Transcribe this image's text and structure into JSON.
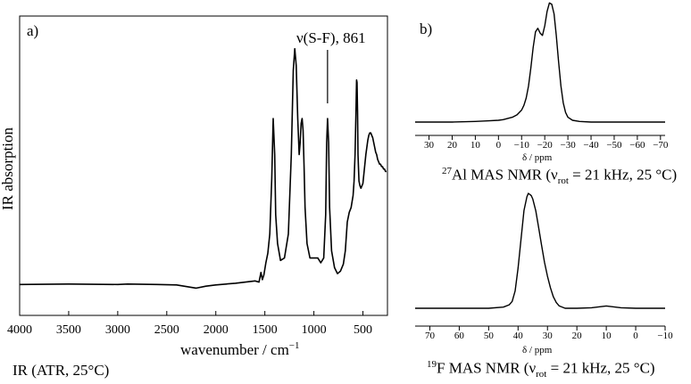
{
  "panels": {
    "a": "a)",
    "b": "b)"
  },
  "captions": {
    "ir": "IR (ATR, 25°C)",
    "al_nucleus": "27",
    "al_text": "Al MAS NMR (ν",
    "al_sub": "rot",
    "al_tail": " = 21 kHz, 25 °C)",
    "f_nucleus": "19",
    "f_text": "F MAS NMR (ν",
    "f_sub": "rot",
    "f_tail": " = 21 kHz, 25 °C)"
  },
  "chart_data": [
    {
      "type": "line",
      "panel": "a)",
      "xlabel": "wavenumber / cm",
      "xlabel_sup": "−1",
      "ylabel": "IR absorption",
      "xlim": [
        4000,
        250
      ],
      "ylim": [
        0,
        1
      ],
      "x_reversed": true,
      "xticks": [
        4000,
        3500,
        3000,
        2500,
        2000,
        1500,
        1000,
        500
      ],
      "y_ticklabels": false,
      "annotation": {
        "text": "ν(S-F), 861",
        "x": 861
      },
      "series": [
        {
          "x": [
            4000,
            3500,
            3000,
            2900,
            2600,
            2400,
            2200,
            2100,
            2000,
            1800,
            1600,
            1560,
            1540,
            1525,
            1510,
            1490,
            1470,
            1450,
            1430,
            1415,
            1400,
            1390,
            1370,
            1340,
            1300,
            1260,
            1230,
            1210,
            1195,
            1180,
            1165,
            1150,
            1140,
            1130,
            1120,
            1110,
            1100,
            1090,
            1070,
            1040,
            1000,
            960,
            930,
            900,
            880,
            870,
            861,
            850,
            840,
            820,
            790,
            760,
            730,
            700,
            680,
            660,
            640,
            620,
            600,
            590,
            580,
            570,
            565,
            560,
            555,
            550,
            540,
            530,
            520,
            510,
            500,
            490,
            480,
            470,
            460,
            450,
            440,
            430,
            420,
            410,
            400,
            390,
            380,
            370,
            360,
            350,
            340,
            330,
            320,
            310,
            300,
            290,
            280,
            270,
            260
          ],
          "y": [
            0.01,
            0.012,
            0.01,
            0.012,
            0.01,
            0.008,
            -0.005,
            0.003,
            0.008,
            0.015,
            0.025,
            0.02,
            0.06,
            0.03,
            0.05,
            0.1,
            0.14,
            0.22,
            0.45,
            0.7,
            0.55,
            0.3,
            0.18,
            0.11,
            0.12,
            0.22,
            0.55,
            0.9,
            0.99,
            0.92,
            0.7,
            0.55,
            0.6,
            0.68,
            0.7,
            0.65,
            0.5,
            0.33,
            0.18,
            0.12,
            0.12,
            0.12,
            0.1,
            0.12,
            0.3,
            0.6,
            0.7,
            0.6,
            0.33,
            0.15,
            0.08,
            0.055,
            0.065,
            0.095,
            0.15,
            0.27,
            0.31,
            0.33,
            0.38,
            0.44,
            0.55,
            0.74,
            0.86,
            0.85,
            0.73,
            0.55,
            0.44,
            0.42,
            0.41,
            0.42,
            0.43,
            0.47,
            0.51,
            0.55,
            0.58,
            0.61,
            0.63,
            0.64,
            0.64,
            0.63,
            0.62,
            0.6,
            0.58,
            0.56,
            0.55,
            0.53,
            0.52,
            0.51,
            0.51,
            0.5,
            0.5,
            0.49,
            0.49,
            0.48,
            0.48
          ]
        }
      ]
    },
    {
      "type": "line",
      "panel": "b)",
      "nucleus": "27Al",
      "xlabel": "δ / ppm",
      "xlim": [
        36,
        -72
      ],
      "ylim": [
        0,
        1
      ],
      "x_reversed": true,
      "xticks": [
        30,
        20,
        10,
        0,
        -10,
        -20,
        -30,
        -40,
        -50,
        -60,
        -70
      ],
      "series": [
        {
          "x": [
            36,
            20,
            10,
            5,
            0,
            -2,
            -4,
            -6,
            -8,
            -10,
            -11,
            -12,
            -13,
            -14,
            -15,
            -16,
            -17,
            -18,
            -19,
            -20,
            -21,
            -22,
            -23,
            -24,
            -25,
            -26,
            -27,
            -28,
            -29,
            -30,
            -32,
            -35,
            -40,
            -50,
            -72
          ],
          "y": [
            0.0,
            0.0,
            0.005,
            0.01,
            0.015,
            0.02,
            0.03,
            0.04,
            0.06,
            0.1,
            0.14,
            0.2,
            0.3,
            0.45,
            0.62,
            0.75,
            0.78,
            0.74,
            0.72,
            0.8,
            0.92,
            0.99,
            0.98,
            0.9,
            0.72,
            0.5,
            0.3,
            0.16,
            0.08,
            0.04,
            0.015,
            0.005,
            0.0,
            0.0,
            0.0
          ]
        }
      ]
    },
    {
      "type": "line",
      "panel": "b)",
      "nucleus": "19F",
      "xlabel": "δ / ppm",
      "xlim": [
        75,
        -10
      ],
      "ylim": [
        0,
        1
      ],
      "x_reversed": true,
      "xticks": [
        70,
        60,
        50,
        40,
        30,
        20,
        10,
        0,
        -10
      ],
      "series": [
        {
          "x": [
            75,
            60,
            50,
            45,
            43,
            42,
            41,
            40,
            39,
            38,
            37,
            36.5,
            36,
            35.5,
            35,
            34,
            33,
            32,
            31,
            30,
            29,
            28,
            27,
            26,
            24,
            20,
            15,
            10,
            5,
            0,
            -10
          ],
          "y": [
            0.0,
            0.0,
            0.0,
            0.01,
            0.03,
            0.06,
            0.15,
            0.35,
            0.6,
            0.85,
            0.97,
            1.0,
            0.99,
            0.98,
            0.95,
            0.85,
            0.7,
            0.55,
            0.4,
            0.28,
            0.18,
            0.1,
            0.05,
            0.02,
            0.0,
            0.0,
            0.005,
            0.02,
            0.005,
            0.0,
            0.0
          ]
        }
      ]
    }
  ]
}
